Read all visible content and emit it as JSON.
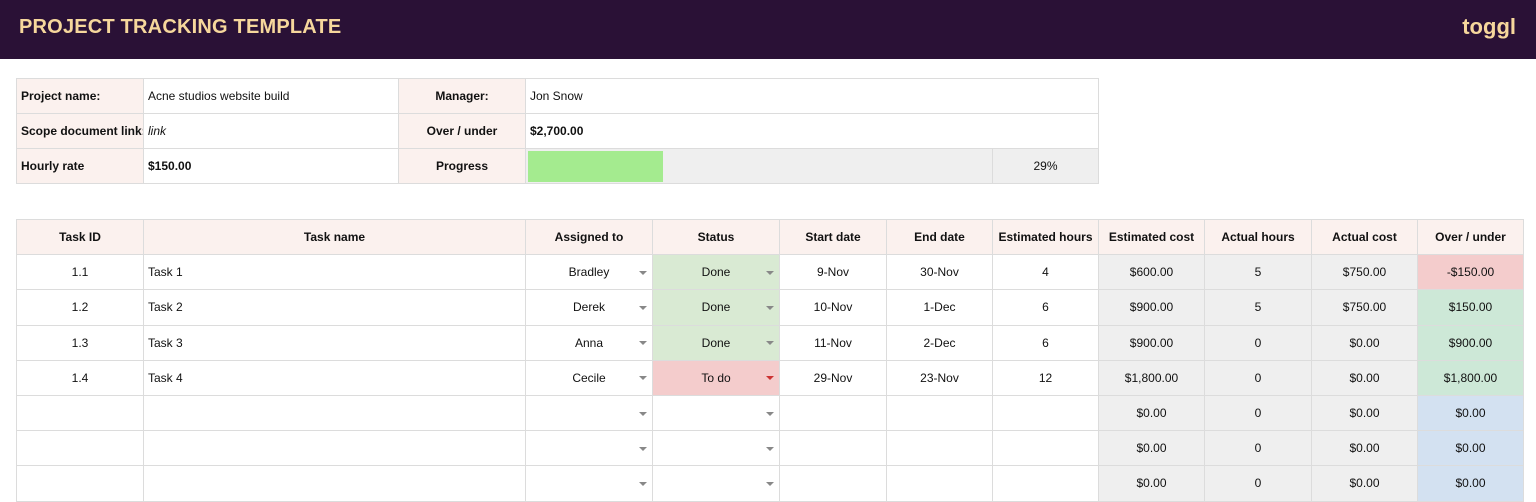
{
  "header": {
    "title": "PROJECT TRACKING TEMPLATE",
    "logo": "toggl"
  },
  "summary": {
    "rows": [
      [
        "Project name:",
        "Acne studios website build",
        "Manager:",
        "Jon Snow"
      ],
      [
        "Scope document link:",
        "link",
        "Over / under",
        "$2,700.00"
      ],
      [
        "Hourly rate",
        "$150.00",
        "Progress"
      ]
    ],
    "progress": {
      "value": 29,
      "label": "29%"
    }
  },
  "tasks": {
    "columns": [
      "Task ID",
      "Task name",
      "Assigned to",
      "Status",
      "Start date",
      "End date",
      "Estimated hours",
      "Estimated cost",
      "Actual hours",
      "Actual cost",
      "Over / under"
    ],
    "rows": [
      [
        "1.1",
        "Task 1",
        "Bradley",
        "Done",
        "9-Nov",
        "30-Nov",
        "4",
        "$600.00",
        "5",
        "$750.00",
        "-$150.00"
      ],
      [
        "1.2",
        "Task 2",
        "Derek",
        "Done",
        "10-Nov",
        "1-Dec",
        "6",
        "$900.00",
        "5",
        "$750.00",
        "$150.00"
      ],
      [
        "1.3",
        "Task 3",
        "Anna",
        "Done",
        "11-Nov",
        "2-Dec",
        "6",
        "$900.00",
        "0",
        "$0.00",
        "$900.00"
      ],
      [
        "1.4",
        "Task 4",
        "Cecile",
        "To do",
        "29-Nov",
        "23-Nov",
        "12",
        "$1,800.00",
        "0",
        "$0.00",
        "$1,800.00"
      ],
      [
        null,
        null,
        null,
        null,
        null,
        null,
        null,
        "$0.00",
        "0",
        "$0.00",
        "$0.00"
      ],
      [
        null,
        null,
        null,
        null,
        null,
        null,
        null,
        "$0.00",
        "0",
        "$0.00",
        "$0.00"
      ],
      [
        null,
        null,
        null,
        null,
        null,
        null,
        null,
        "$0.00",
        "0",
        "$0.00",
        "$0.00"
      ]
    ]
  }
}
